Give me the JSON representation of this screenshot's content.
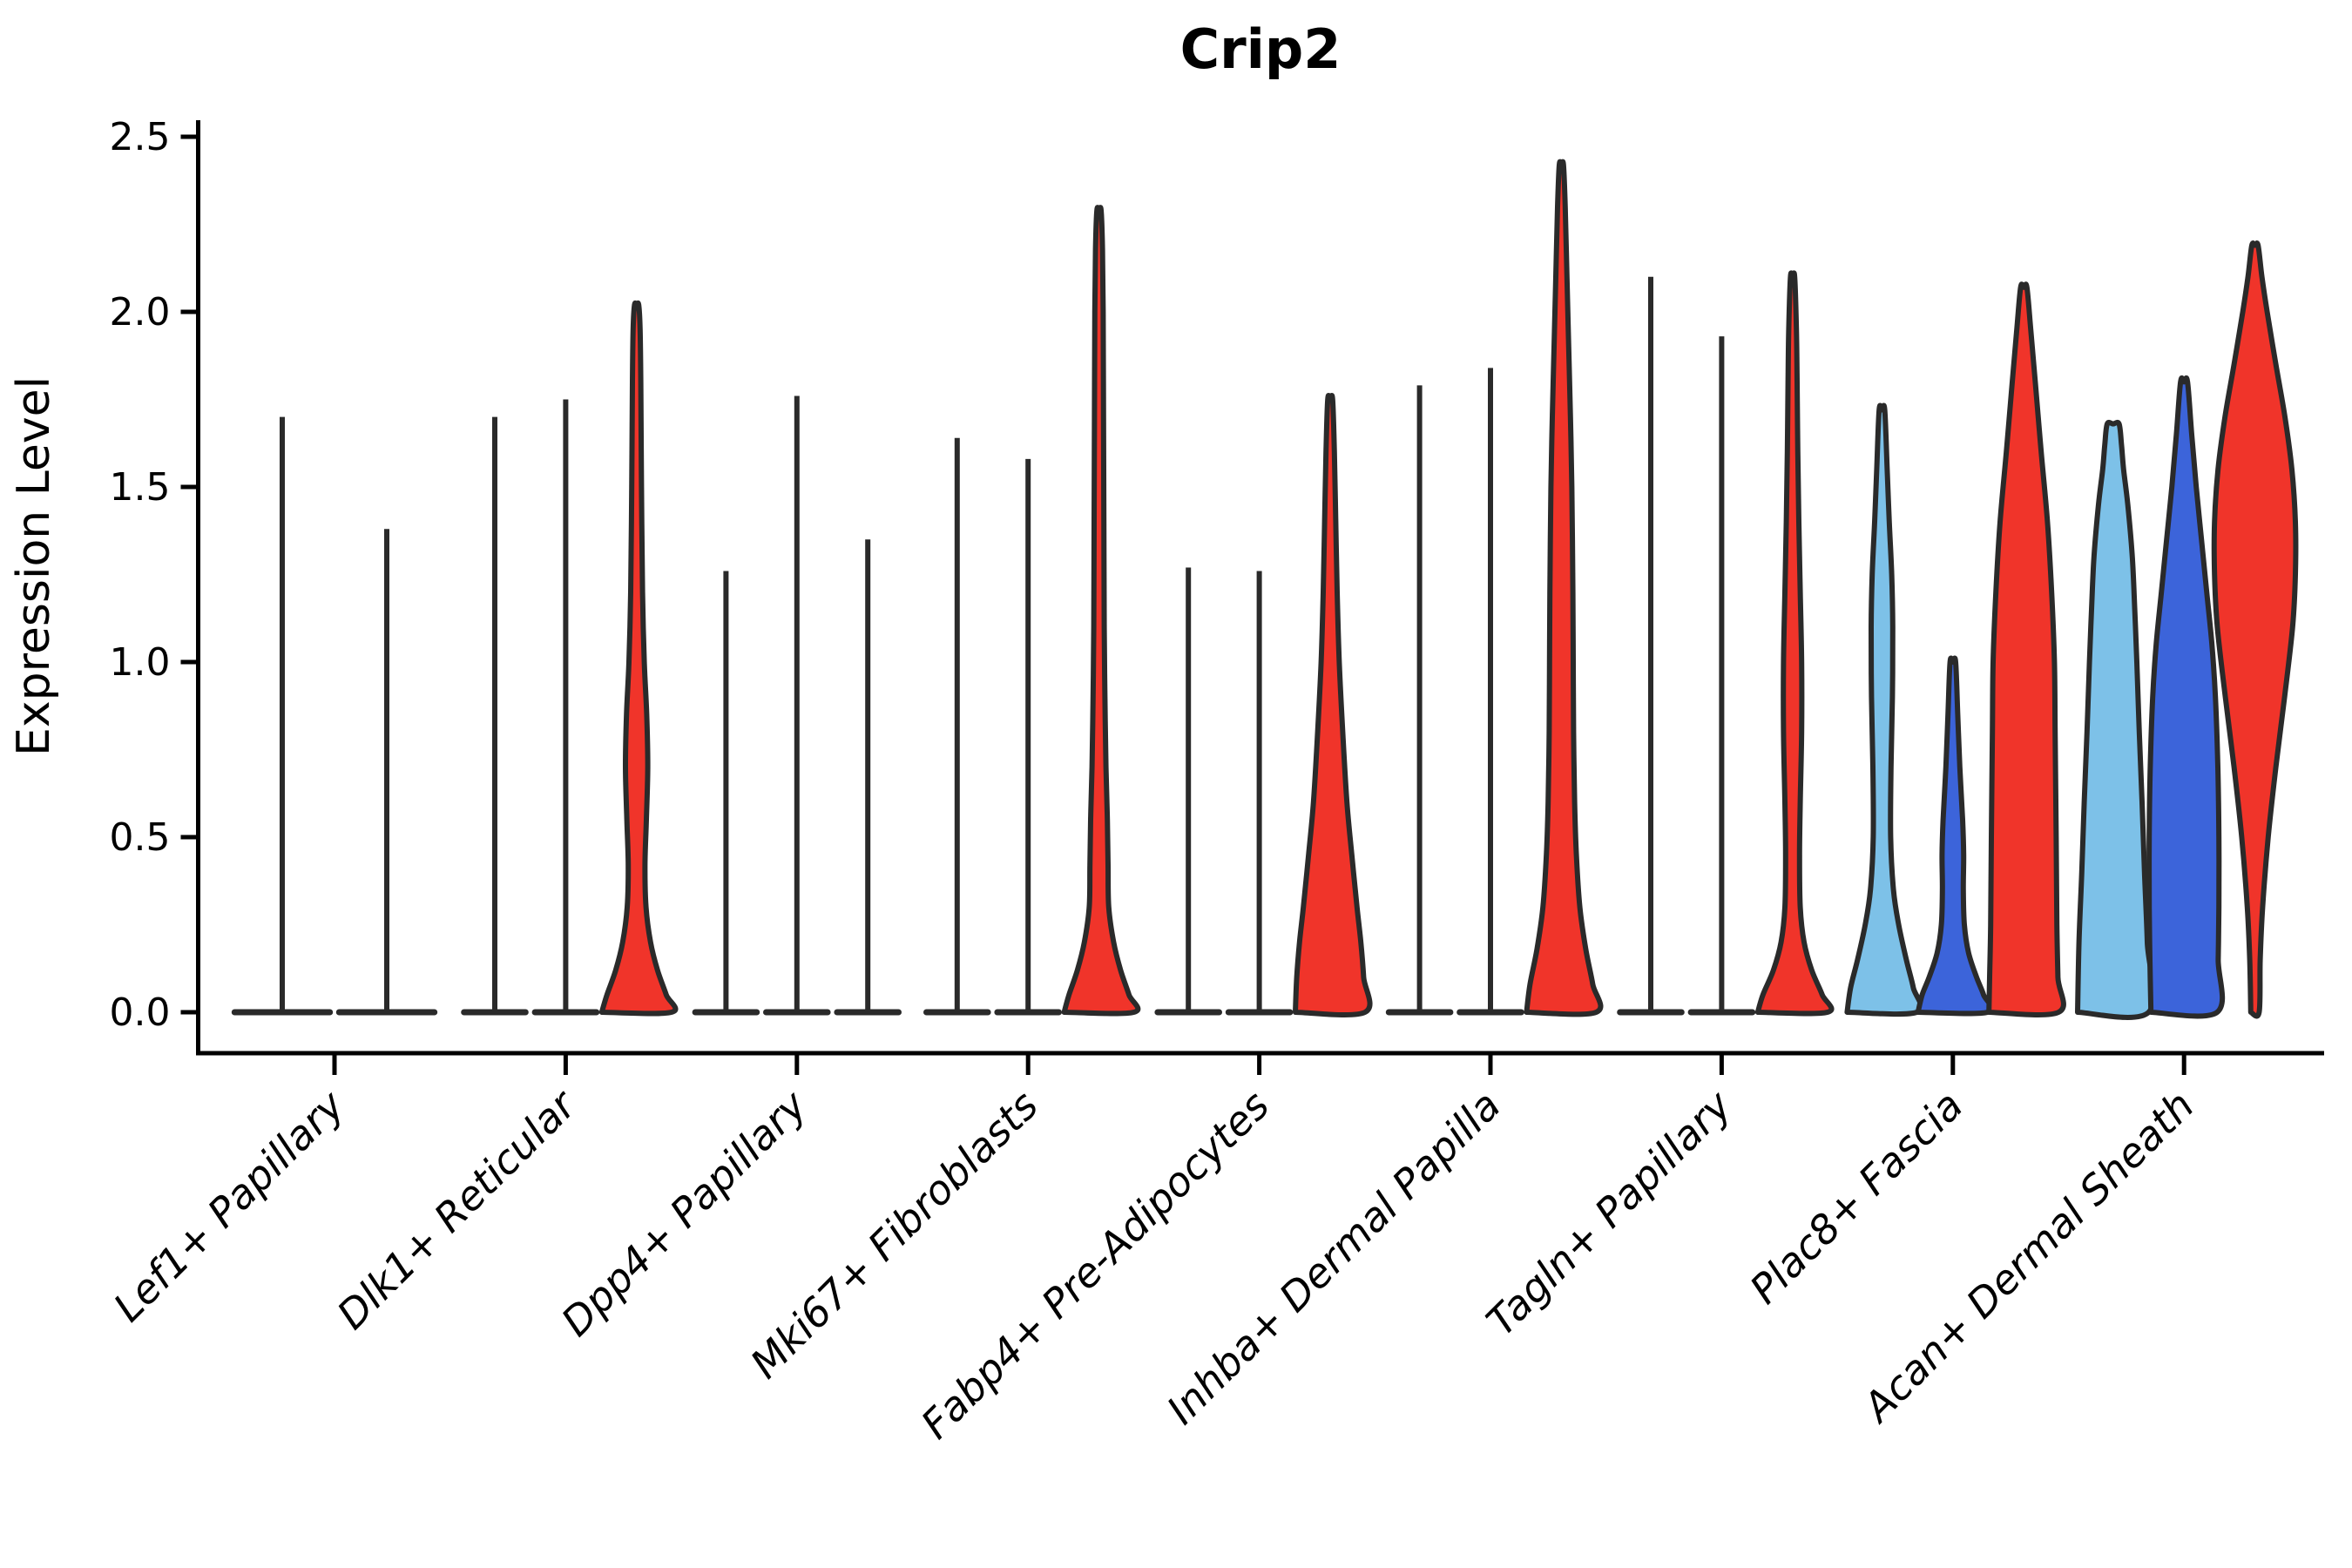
{
  "title": "Crip2",
  "ylabel": "Expression Level",
  "palette": {
    "red": "#F0342A",
    "light_blue": "#7DC1E8",
    "dark_blue": "#3C64DA",
    "ink": "#2A2A2A"
  },
  "chart_data": {
    "type": "violin",
    "title": "Crip2",
    "xlabel": "",
    "ylabel": "Expression Level",
    "ylim": [
      0,
      2.5
    ],
    "yticks": [
      {
        "value": 0.0,
        "label": "0.0"
      },
      {
        "value": 0.5,
        "label": "0.5"
      },
      {
        "value": 1.0,
        "label": "1.0"
      },
      {
        "value": 1.5,
        "label": "1.5"
      },
      {
        "value": 2.0,
        "label": "2.0"
      },
      {
        "value": 2.5,
        "label": "2.5"
      }
    ],
    "grid": false,
    "legend": "none",
    "categories": [
      "Lef1+ Papillary",
      "Dlk1+ Reticular",
      "Dpp4+ Papillary",
      "Mki67+ Fibroblasts",
      "Fabp4+ Pre-Adipocytes",
      "Inhba+ Dermal Papilla",
      "Tagln+ Papillary",
      "Plac8+ Fascia",
      "Acan+ Dermal Sheath"
    ],
    "groups": [
      {
        "category": "Lef1+ Papillary",
        "violins": [
          {
            "style": "line",
            "color": "ink",
            "max": 1.7
          },
          {
            "style": "line",
            "color": "ink",
            "max": 1.38
          }
        ]
      },
      {
        "category": "Dlk1+ Reticular",
        "violins": [
          {
            "style": "line",
            "color": "ink",
            "max": 1.7
          },
          {
            "style": "line",
            "color": "ink",
            "max": 1.75
          },
          {
            "style": "violin",
            "color": "red",
            "max": 2.02,
            "shape": [
              [
                0,
                1.0
              ],
              [
                0.05,
                0.85
              ],
              [
                0.12,
                0.6
              ],
              [
                0.2,
                0.4
              ],
              [
                0.3,
                0.27
              ],
              [
                0.42,
                0.24
              ],
              [
                0.55,
                0.28
              ],
              [
                0.7,
                0.32
              ],
              [
                0.85,
                0.29
              ],
              [
                1.0,
                0.22
              ],
              [
                1.2,
                0.17
              ],
              [
                1.5,
                0.14
              ],
              [
                1.8,
                0.12
              ],
              [
                1.95,
                0.1
              ],
              [
                2.02,
                0.06
              ]
            ]
          }
        ]
      },
      {
        "category": "Dpp4+ Papillary",
        "violins": [
          {
            "style": "line",
            "color": "ink",
            "max": 1.26
          },
          {
            "style": "line",
            "color": "ink",
            "max": 1.76
          },
          {
            "style": "line",
            "color": "ink",
            "max": 1.35
          }
        ]
      },
      {
        "category": "Mki67+ Fibroblasts",
        "violins": [
          {
            "style": "line",
            "color": "ink",
            "max": 1.64
          },
          {
            "style": "line",
            "color": "ink",
            "max": 1.58
          },
          {
            "style": "violin",
            "color": "red",
            "max": 2.29,
            "shape": [
              [
                0,
                1.0
              ],
              [
                0.05,
                0.86
              ],
              [
                0.12,
                0.62
              ],
              [
                0.2,
                0.42
              ],
              [
                0.3,
                0.28
              ],
              [
                0.42,
                0.26
              ],
              [
                0.55,
                0.24
              ],
              [
                0.7,
                0.2
              ],
              [
                0.9,
                0.17
              ],
              [
                1.1,
                0.15
              ],
              [
                1.4,
                0.14
              ],
              [
                1.7,
                0.13
              ],
              [
                2.0,
                0.12
              ],
              [
                2.18,
                0.1
              ],
              [
                2.29,
                0.06
              ]
            ]
          }
        ]
      },
      {
        "category": "Fabp4+ Pre-Adipocytes",
        "violins": [
          {
            "style": "line",
            "color": "ink",
            "max": 1.27
          },
          {
            "style": "line",
            "color": "ink",
            "max": 1.26
          },
          {
            "style": "violin",
            "color": "red",
            "max": 1.75,
            "shape": [
              [
                0,
                1.0
              ],
              [
                0.1,
                0.96
              ],
              [
                0.2,
                0.88
              ],
              [
                0.3,
                0.77
              ],
              [
                0.45,
                0.62
              ],
              [
                0.6,
                0.48
              ],
              [
                0.8,
                0.36
              ],
              [
                1.0,
                0.26
              ],
              [
                1.2,
                0.2
              ],
              [
                1.4,
                0.16
              ],
              [
                1.6,
                0.12
              ],
              [
                1.75,
                0.07
              ]
            ]
          }
        ]
      },
      {
        "category": "Inhba+ Dermal Papilla",
        "violins": [
          {
            "style": "line",
            "color": "ink",
            "max": 1.79
          },
          {
            "style": "line",
            "color": "ink",
            "max": 1.84
          },
          {
            "style": "violin",
            "color": "red",
            "max": 2.42,
            "shape": [
              [
                0,
                1.0
              ],
              [
                0.08,
                0.9
              ],
              [
                0.18,
                0.7
              ],
              [
                0.3,
                0.53
              ],
              [
                0.45,
                0.43
              ],
              [
                0.6,
                0.38
              ],
              [
                0.8,
                0.35
              ],
              [
                1.0,
                0.34
              ],
              [
                1.2,
                0.33
              ],
              [
                1.5,
                0.3
              ],
              [
                1.7,
                0.26
              ],
              [
                1.9,
                0.21
              ],
              [
                2.1,
                0.16
              ],
              [
                2.3,
                0.11
              ],
              [
                2.42,
                0.06
              ]
            ]
          }
        ]
      },
      {
        "category": "Tagln+ Papillary",
        "violins": [
          {
            "style": "line",
            "color": "ink",
            "max": 2.1
          },
          {
            "style": "line",
            "color": "ink",
            "max": 1.93
          },
          {
            "style": "violin",
            "color": "red",
            "max": 2.1,
            "shape": [
              [
                0,
                1.0
              ],
              [
                0.05,
                0.85
              ],
              [
                0.12,
                0.55
              ],
              [
                0.2,
                0.33
              ],
              [
                0.3,
                0.22
              ],
              [
                0.45,
                0.2
              ],
              [
                0.6,
                0.22
              ],
              [
                0.8,
                0.26
              ],
              [
                1.0,
                0.26
              ],
              [
                1.2,
                0.22
              ],
              [
                1.4,
                0.18
              ],
              [
                1.6,
                0.15
              ],
              [
                1.8,
                0.13
              ],
              [
                1.95,
                0.11
              ],
              [
                2.1,
                0.06
              ]
            ]
          }
        ]
      },
      {
        "category": "Plac8+ Fascia",
        "violins": [
          {
            "style": "violin",
            "color": "light_blue",
            "max": 1.72,
            "shape": [
              [
                0,
                1.0
              ],
              [
                0.07,
                0.9
              ],
              [
                0.15,
                0.7
              ],
              [
                0.25,
                0.48
              ],
              [
                0.35,
                0.33
              ],
              [
                0.5,
                0.25
              ],
              [
                0.7,
                0.26
              ],
              [
                0.9,
                0.3
              ],
              [
                1.1,
                0.31
              ],
              [
                1.25,
                0.28
              ],
              [
                1.4,
                0.21
              ],
              [
                1.55,
                0.15
              ],
              [
                1.72,
                0.08
              ]
            ]
          },
          {
            "style": "violin",
            "color": "dark_blue",
            "max": 1.0,
            "shape": [
              [
                0,
                1.0
              ],
              [
                0.05,
                0.88
              ],
              [
                0.1,
                0.68
              ],
              [
                0.17,
                0.45
              ],
              [
                0.25,
                0.33
              ],
              [
                0.35,
                0.3
              ],
              [
                0.45,
                0.31
              ],
              [
                0.55,
                0.28
              ],
              [
                0.7,
                0.2
              ],
              [
                0.85,
                0.14
              ],
              [
                1.0,
                0.08
              ]
            ]
          },
          {
            "style": "violin",
            "color": "red",
            "max": 2.07,
            "shape": [
              [
                0,
                1.0
              ],
              [
                0.1,
                0.98
              ],
              [
                0.25,
                0.95
              ],
              [
                0.5,
                0.93
              ],
              [
                0.8,
                0.9
              ],
              [
                1.0,
                0.88
              ],
              [
                1.2,
                0.8
              ],
              [
                1.4,
                0.68
              ],
              [
                1.6,
                0.5
              ],
              [
                1.8,
                0.33
              ],
              [
                1.95,
                0.2
              ],
              [
                2.07,
                0.09
              ]
            ]
          }
        ]
      },
      {
        "category": "Acan+ Dermal Sheath",
        "violins": [
          {
            "style": "violin",
            "color": "light_blue",
            "max": 1.68,
            "shape": [
              [
                0,
                1.02
              ],
              [
                0.2,
                0.98
              ],
              [
                0.4,
                0.9
              ],
              [
                0.6,
                0.83
              ],
              [
                0.8,
                0.75
              ],
              [
                1.0,
                0.68
              ],
              [
                1.15,
                0.62
              ],
              [
                1.3,
                0.55
              ],
              [
                1.45,
                0.42
              ],
              [
                1.55,
                0.3
              ],
              [
                1.62,
                0.24
              ],
              [
                1.68,
                0.17
              ]
            ]
          },
          {
            "style": "violin",
            "color": "dark_blue",
            "max": 1.8,
            "shape": [
              [
                0,
                0.95
              ],
              [
                0.15,
                0.98
              ],
              [
                0.3,
                1.0
              ],
              [
                0.5,
                1.0
              ],
              [
                0.7,
                0.97
              ],
              [
                0.9,
                0.9
              ],
              [
                1.05,
                0.8
              ],
              [
                1.2,
                0.65
              ],
              [
                1.35,
                0.5
              ],
              [
                1.5,
                0.35
              ],
              [
                1.65,
                0.22
              ],
              [
                1.8,
                0.1
              ]
            ]
          },
          {
            "style": "violin",
            "color": "red",
            "max": 2.19,
            "shape": [
              [
                0,
                0.12
              ],
              [
                0.15,
                0.15
              ],
              [
                0.3,
                0.22
              ],
              [
                0.5,
                0.38
              ],
              [
                0.7,
                0.6
              ],
              [
                0.9,
                0.85
              ],
              [
                1.1,
                1.08
              ],
              [
                1.25,
                1.16
              ],
              [
                1.4,
                1.16
              ],
              [
                1.55,
                1.06
              ],
              [
                1.7,
                0.86
              ],
              [
                1.85,
                0.6
              ],
              [
                2.0,
                0.35
              ],
              [
                2.1,
                0.2
              ],
              [
                2.19,
                0.09
              ]
            ]
          }
        ]
      }
    ]
  }
}
